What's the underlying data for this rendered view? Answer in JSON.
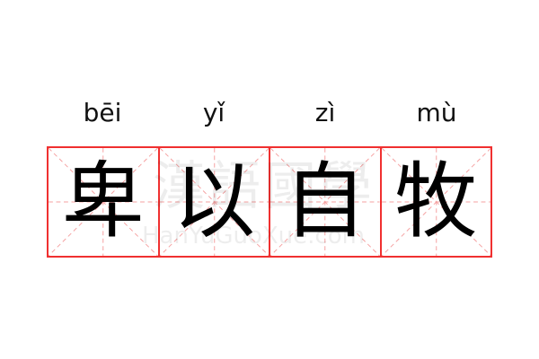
{
  "colors": {
    "grid": "#f03030",
    "guide": "#f5a0a0"
  },
  "items": [
    {
      "pinyin": "bēi",
      "char": "卑"
    },
    {
      "pinyin": "yǐ",
      "char": "以"
    },
    {
      "pinyin": "zì",
      "char": "自"
    },
    {
      "pinyin": "mù",
      "char": "牧"
    }
  ],
  "watermark": {
    "logo": "漢語國學",
    "site": "HanYuGuoXue.com"
  }
}
